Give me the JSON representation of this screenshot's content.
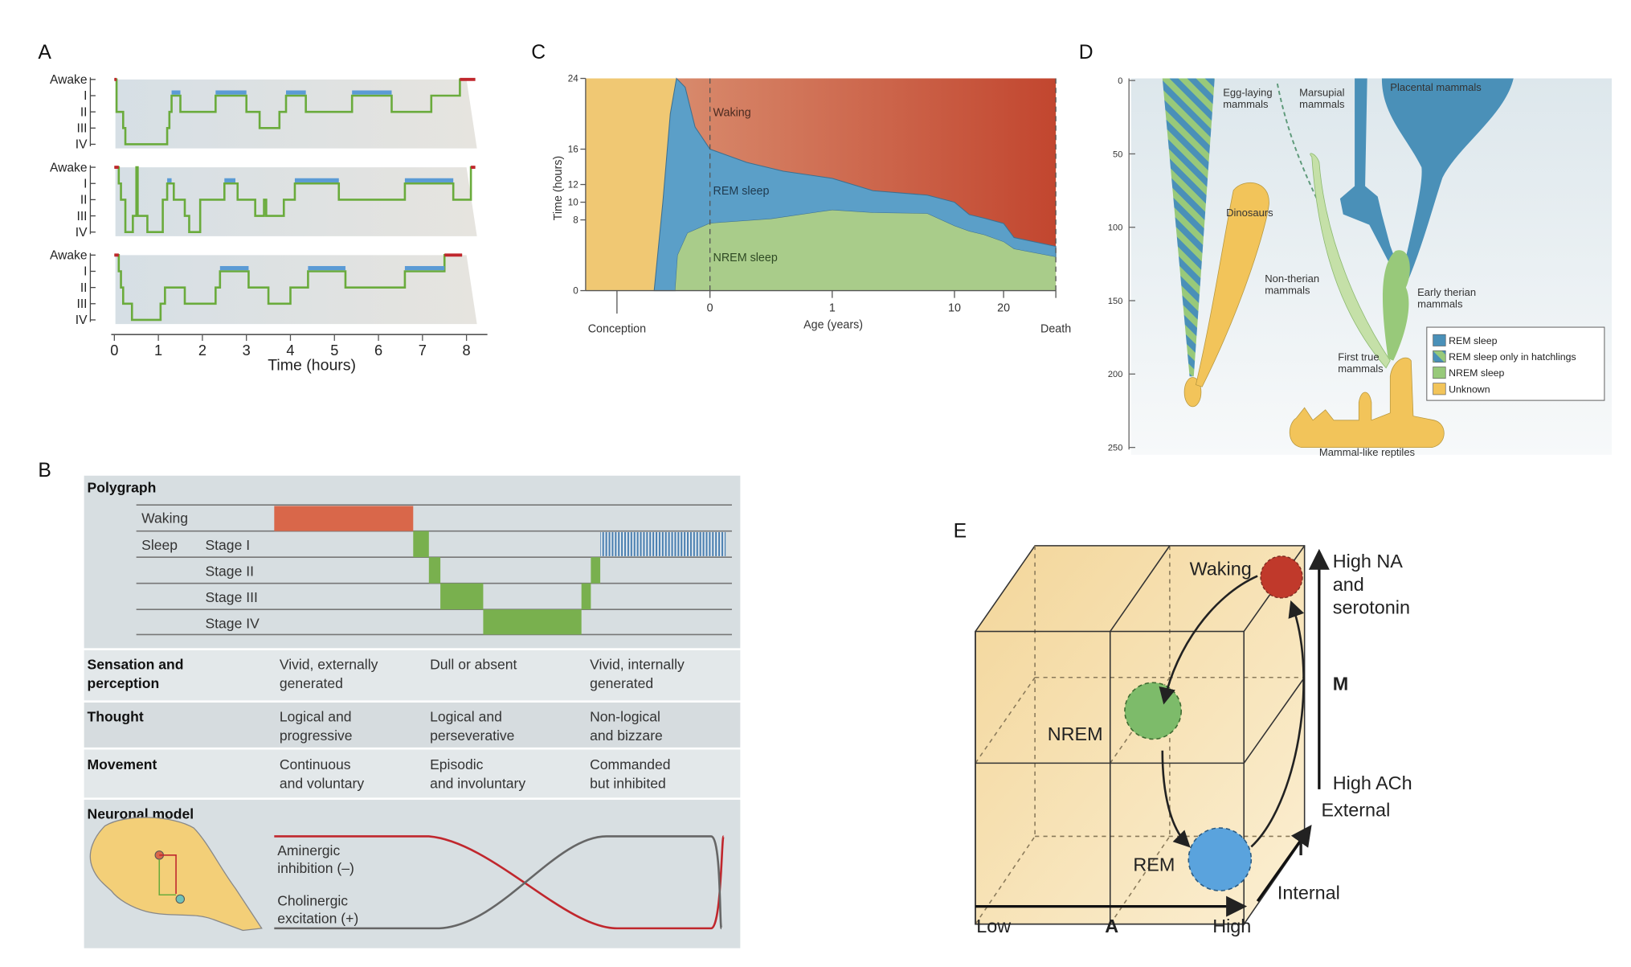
{
  "panels": {
    "a": {
      "label": "A",
      "stage_labels": [
        "Awake",
        "I",
        "II",
        "III",
        "IV"
      ],
      "x_ticks": [
        "0",
        "1",
        "2",
        "3",
        "4",
        "5",
        "6",
        "7",
        "8"
      ],
      "x_title": "Time (hours)",
      "colors": {
        "sleep": "#6aab3c",
        "awake": "#c0272d",
        "rem": "#5b9bd5"
      },
      "hypnograms": [
        {
          "steps": [
            [
              0,
              0
            ],
            [
              0.05,
              2
            ],
            [
              0.2,
              3
            ],
            [
              0.25,
              4
            ],
            [
              1.2,
              3
            ],
            [
              1.25,
              2
            ],
            [
              1.3,
              1
            ],
            [
              1.5,
              2
            ],
            [
              2.3,
              1
            ],
            [
              3.0,
              2
            ],
            [
              3.3,
              3
            ],
            [
              3.75,
              2
            ],
            [
              3.9,
              1
            ],
            [
              4.35,
              2
            ],
            [
              5.4,
              1
            ],
            [
              6.3,
              2
            ],
            [
              7.2,
              1
            ],
            [
              7.85,
              0
            ]
          ],
          "end": 8.2,
          "rem": [
            [
              1.3,
              1.5
            ],
            [
              2.3,
              3.0
            ],
            [
              3.9,
              4.35
            ],
            [
              5.4,
              6.3
            ]
          ]
        },
        {
          "steps": [
            [
              0,
              0
            ],
            [
              0.1,
              1
            ],
            [
              0.15,
              2
            ],
            [
              0.25,
              4
            ],
            [
              0.42,
              3
            ],
            [
              0.5,
              0
            ],
            [
              0.53,
              3
            ],
            [
              0.65,
              3
            ],
            [
              0.75,
              4
            ],
            [
              1.1,
              2
            ],
            [
              1.2,
              1
            ],
            [
              1.35,
              2
            ],
            [
              1.6,
              3
            ],
            [
              1.7,
              4
            ],
            [
              1.95,
              2
            ],
            [
              2.5,
              1
            ],
            [
              2.8,
              2
            ],
            [
              3.2,
              3
            ],
            [
              3.4,
              2
            ],
            [
              3.45,
              3
            ],
            [
              3.85,
              2
            ],
            [
              4.1,
              1
            ],
            [
              5.1,
              2
            ],
            [
              6.6,
              1
            ],
            [
              7.7,
              2
            ],
            [
              8.1,
              0
            ]
          ],
          "end": 8.2,
          "rem": [
            [
              1.2,
              1.3
            ],
            [
              2.5,
              2.75
            ],
            [
              4.1,
              5.1
            ],
            [
              6.6,
              7.7
            ]
          ]
        },
        {
          "steps": [
            [
              0,
              0
            ],
            [
              0.1,
              1
            ],
            [
              0.15,
              2
            ],
            [
              0.2,
              3
            ],
            [
              0.4,
              4
            ],
            [
              1.05,
              3
            ],
            [
              1.15,
              2
            ],
            [
              1.6,
              3
            ],
            [
              2.3,
              2
            ],
            [
              2.4,
              1
            ],
            [
              3.05,
              2
            ],
            [
              3.5,
              3
            ],
            [
              4.0,
              2
            ],
            [
              4.4,
              1
            ],
            [
              5.25,
              2
            ],
            [
              6.6,
              1
            ],
            [
              7.5,
              0
            ]
          ],
          "end": 7.9,
          "rem": [
            [
              2.4,
              3.05
            ],
            [
              4.4,
              5.25
            ],
            [
              6.6,
              7.5
            ]
          ]
        }
      ]
    },
    "b": {
      "label": "B",
      "polygraph_title": "Polygraph",
      "rows": {
        "waking": "Waking",
        "sleep": "Sleep",
        "stage1": "Stage I",
        "stage2": "Stage II",
        "stage3": "Stage III",
        "stage4": "Stage IV"
      },
      "table": [
        {
          "label": [
            "Sensation and",
            "perception"
          ],
          "waking": [
            "Vivid, externally",
            "generated"
          ],
          "nrem": [
            "Dull or absent",
            ""
          ],
          "rem": [
            "Vivid, internally",
            "generated"
          ]
        },
        {
          "label": [
            "Thought",
            ""
          ],
          "waking": [
            "Logical and",
            "progressive"
          ],
          "nrem": [
            "Logical and",
            "perseverative"
          ],
          "rem": [
            "Non-logical",
            "and bizzare"
          ]
        },
        {
          "label": [
            "Movement",
            ""
          ],
          "waking": [
            "Continuous",
            "and voluntary"
          ],
          "nrem": [
            "Episodic",
            "and involuntary"
          ],
          "rem": [
            "Commanded",
            "but inhibited"
          ]
        }
      ],
      "neuronal_title": "Neuronal model",
      "aminergic": [
        "Aminergic",
        "inhibition (–)"
      ],
      "cholinergic": [
        "Cholinergic",
        "excitation (+)"
      ]
    },
    "c": {
      "label": "C",
      "chart_data": {
        "type": "area",
        "xlabel": "Age (years)",
        "ylabel": "Time (hours)",
        "x_ticks": [
          "Conception",
          "0",
          "1",
          "10",
          "20",
          "Death"
        ],
        "y_ticks": [
          0,
          8,
          10,
          12,
          16,
          24
        ],
        "ylim": [
          0,
          24
        ],
        "series": [
          {
            "name": "Waking",
            "color": "#c8553b"
          },
          {
            "name": "REM sleep",
            "color": "#5b9fc8",
            "upper_total_sleep": [
              [
                -0.45,
                0
              ],
              [
                -0.38,
                10
              ],
              [
                -0.32,
                20
              ],
              [
                -0.27,
                24
              ],
              [
                -0.2,
                23
              ],
              [
                -0.12,
                18.5
              ],
              [
                0,
                16
              ],
              [
                0.3,
                14.5
              ],
              [
                0.6,
                13.5
              ],
              [
                1,
                12.7
              ],
              [
                4,
                11.3
              ],
              [
                8,
                10.8
              ],
              [
                10,
                10
              ],
              [
                13,
                8.6
              ],
              [
                16,
                8.2
              ],
              [
                20,
                7.6
              ],
              [
                25,
                6
              ],
              [
                "Death",
                5
              ]
            ]
          },
          {
            "name": "NREM sleep",
            "color": "#a9cc8a",
            "values": [
              [
                -0.28,
                0
              ],
              [
                -0.26,
                4
              ],
              [
                -0.18,
                6.5
              ],
              [
                0,
                7.6
              ],
              [
                0.5,
                8.1
              ],
              [
                1,
                9.1
              ],
              [
                4,
                8.8
              ],
              [
                8,
                8.7
              ],
              [
                10,
                7.3
              ],
              [
                13,
                6.7
              ],
              [
                16,
                6.3
              ],
              [
                20,
                5.5
              ],
              [
                25,
                4.7
              ],
              [
                "Death",
                3.8
              ]
            ]
          }
        ],
        "unknown_color": "#f0c873"
      }
    },
    "d": {
      "label": "D",
      "y_ticks": [
        "0",
        "50",
        "100",
        "150",
        "200",
        "250"
      ],
      "labels": {
        "egg_laying": [
          "Egg-laying",
          "mammals"
        ],
        "marsupial": [
          "Marsupial",
          "mammals"
        ],
        "placental": "Placental mammals",
        "dinosaurs": "Dinosaurs",
        "non_therian": [
          "Non-therian",
          "mammals"
        ],
        "early_therian": [
          "Early therian",
          "mammals"
        ],
        "first_true": [
          "First true",
          "mammals"
        ],
        "mammal_like": "Mammal-like reptiles"
      },
      "legend": [
        {
          "label": "REM sleep",
          "color": "#4a90b8"
        },
        {
          "label": "REM sleep only in hatchlings",
          "color": "striped"
        },
        {
          "label": "NREM sleep",
          "color": "#98c97a"
        },
        {
          "label": "Unknown",
          "color": "#f2c45a"
        }
      ]
    },
    "e": {
      "label": "E",
      "states": {
        "waking": "Waking",
        "nrem": "NREM",
        "rem": "REM"
      },
      "m_axis": {
        "top": [
          "High NA",
          "and",
          "serotonin"
        ],
        "name": "M",
        "bottom": "High ACh"
      },
      "i_axis": {
        "top": "External",
        "name": "I",
        "bottom": "Internal"
      },
      "a_axis": {
        "low": "Low",
        "name": "A",
        "high": "High"
      },
      "colors": {
        "waking": "#c0392b",
        "nrem": "#7dbb6a",
        "rem": "#5aa3dd"
      }
    }
  }
}
